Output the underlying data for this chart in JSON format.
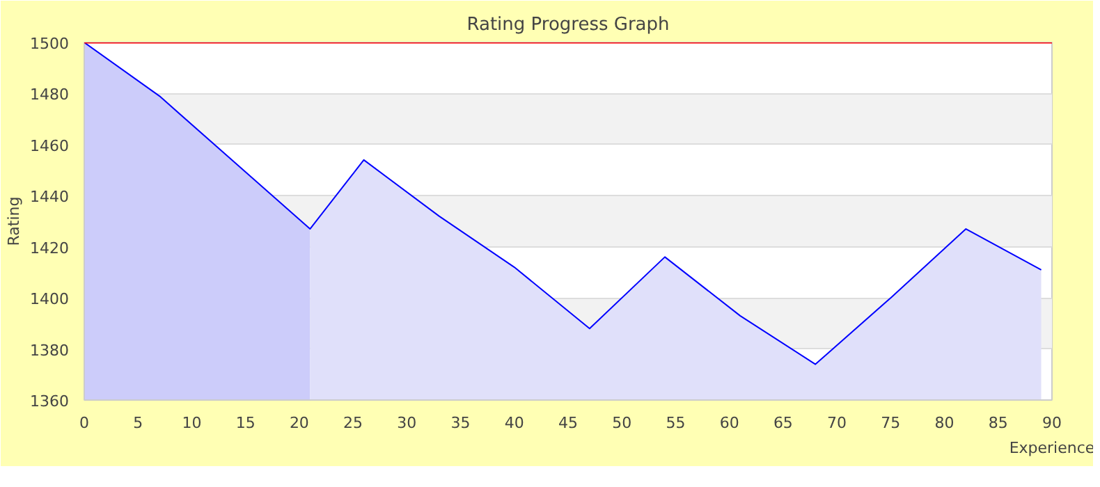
{
  "chart_data": {
    "type": "area",
    "title": "Rating Progress Graph",
    "xlabel": "Experience",
    "ylabel": "Rating",
    "series": [
      {
        "color": "#ccccfa",
        "x": [
          0,
          7,
          21
        ],
        "values": [
          1500,
          1479,
          1427
        ]
      },
      {
        "color": "#e0e0fa",
        "x": [
          21,
          26,
          33,
          40,
          47,
          54,
          61,
          68,
          75,
          82,
          89
        ],
        "values": [
          1427,
          1454,
          1432,
          1412,
          1388,
          1416,
          1393,
          1374,
          1400,
          1427,
          1411
        ]
      },
      {
        "type": "line",
        "color": "#0000ff",
        "x": [
          0,
          7,
          21,
          26,
          33,
          40,
          47,
          54,
          61,
          68,
          75,
          82,
          89
        ],
        "values": [
          1500,
          1479,
          1427,
          1454,
          1432,
          1412,
          1388,
          1416,
          1393,
          1374,
          1400,
          1427,
          1411
        ]
      }
    ],
    "ref_lines": [
      {
        "axis": "y",
        "value": 1500,
        "color": "#ff0000"
      }
    ],
    "xlim": [
      0,
      90
    ],
    "xticks": [
      0,
      5,
      10,
      15,
      20,
      25,
      30,
      35,
      40,
      45,
      50,
      55,
      60,
      65,
      70,
      75,
      80,
      85,
      90
    ],
    "ylim": [
      1360,
      1500
    ],
    "yticks": [
      1360,
      1380,
      1400,
      1420,
      1440,
      1460,
      1480,
      1500
    ],
    "grid": "y"
  }
}
